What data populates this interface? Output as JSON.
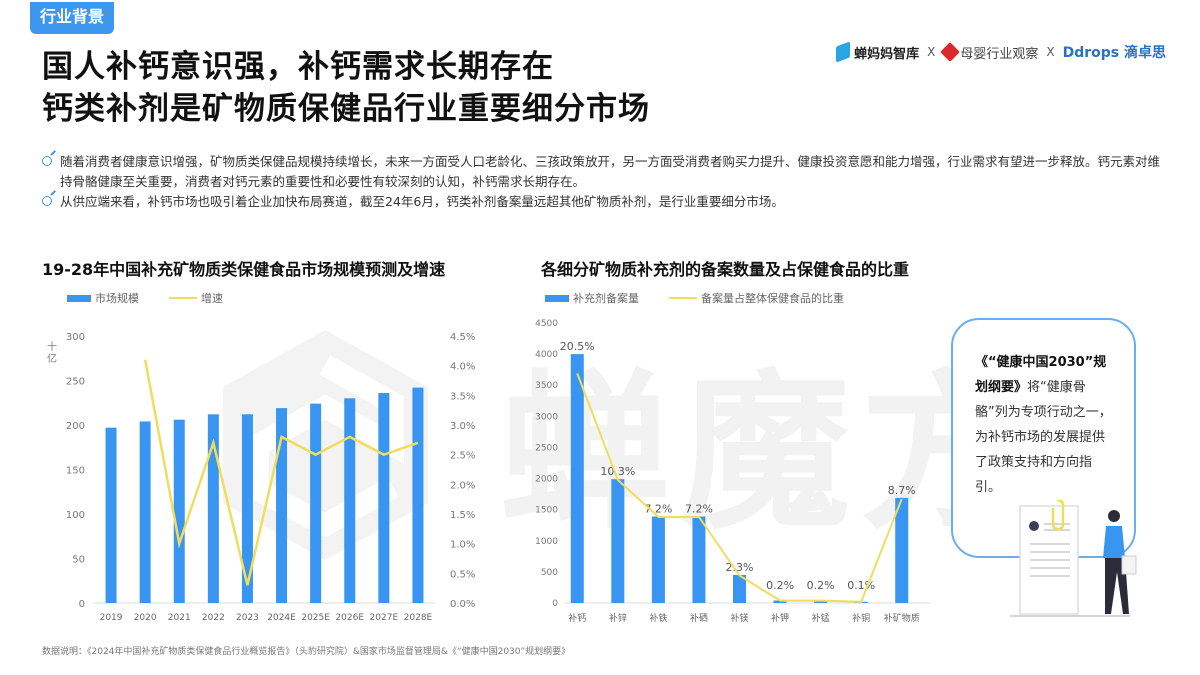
{
  "header": {
    "section_tag": "行业背景",
    "title_line1": "国人补钙意识强，补钙需求长期存在",
    "title_line2": "钙类补剂是矿物质保健品行业重要细分市场",
    "logos": [
      {
        "name": "蝉妈妈智库"
      },
      {
        "separator": "X"
      },
      {
        "name": "母婴行业观察"
      },
      {
        "separator": "X"
      },
      {
        "name": "Ddrops 滴卓思"
      }
    ]
  },
  "bullets": [
    "随着消费者健康意识增强，矿物质类保健品规模持续增长，未来一方面受人口老龄化、三孩政策放开，另一方面受消费者购买力提升、健康投资意愿和能力增强，行业需求有望进一步释放。钙元素对维持骨骼健康至关重要，消费者对钙元素的重要性和必要性有较深刻的认知，补钙需求长期存在。",
    "从供应端来看，补钙市场也吸引着企业加快布局赛道，截至24年6月，钙类补剂备案量远超其他矿物质补剂，是行业重要细分市场。"
  ],
  "callout": {
    "bold_text": "《“健康中国2030”规划纲要》",
    "text": "将“健康骨骼”列为专项行动之一，为补钙市场的发展提供了政策支持和方向指引。"
  },
  "watermark": "蝉魔方",
  "footer": "数据说明：《2024年中国补充矿物质类保健食品行业概览报告》（头豹研究院）&国家市场监督管理局&《“健康中国2030”规划纲要》",
  "colors": {
    "accent_blue": "#3d97ee",
    "bar_blue": "#3895f1",
    "line_yellow": "#f1dd5d",
    "callout_border": "#6aaef0"
  },
  "chart_data": [
    {
      "type": "bar",
      "title": "19-28年中国补充矿物质类保健食品市场规模预测及增速",
      "xlabel": "",
      "ylabel": "十亿",
      "categories": [
        "2019",
        "2020",
        "2021",
        "2022",
        "2023",
        "2024E",
        "2025E",
        "2026E",
        "2027E",
        "2028E"
      ],
      "series": [
        {
          "name": "市场规模",
          "type": "bar",
          "axis": "left",
          "values": [
            197,
            204,
            206,
            212,
            212,
            219,
            224,
            230,
            236,
            242
          ]
        },
        {
          "name": "增速",
          "type": "line",
          "axis": "right",
          "values": [
            null,
            4.1,
            1.0,
            2.7,
            0.3,
            2.8,
            2.5,
            2.8,
            2.5,
            2.7
          ]
        }
      ],
      "ylim": [
        0,
        300
      ],
      "yticks": [
        "0",
        "50",
        "100",
        "150",
        "200",
        "250",
        "300"
      ],
      "y2lim": [
        0,
        4.5
      ],
      "y2ticks": [
        "0.0%",
        "0.5%",
        "1.0%",
        "1.5%",
        "2.0%",
        "2.5%",
        "3.0%",
        "3.5%",
        "4.0%",
        "4.5%"
      ],
      "legend": [
        "市场规模",
        "增速"
      ],
      "legend_position": "top-left",
      "grid": false
    },
    {
      "type": "bar",
      "title": "各细分矿物质补充剂的备案数量及占保健食品的比重",
      "xlabel": "",
      "ylabel": "",
      "categories": [
        "补钙",
        "补锌",
        "补铁",
        "补硒",
        "补镁",
        "补钾",
        "补锰",
        "补铜",
        "补矿物质"
      ],
      "series": [
        {
          "name": "补充剂备案量",
          "type": "bar",
          "values": [
            4000,
            1990,
            1390,
            1390,
            450,
            40,
            40,
            20,
            1690
          ]
        },
        {
          "name": "备案量占整体保健食品的比重",
          "type": "line",
          "values": [
            20.5,
            10.3,
            7.2,
            7.2,
            2.3,
            0.2,
            0.2,
            0.1,
            8.7
          ]
        }
      ],
      "data_labels": [
        "20.5%",
        "10.3%",
        "7.2%",
        "7.2%",
        "2.3%",
        "0.2%",
        "0.2%",
        "0.1%",
        "8.7%"
      ],
      "ylim": [
        0,
        4500
      ],
      "yticks": [
        "0",
        "500",
        "1000",
        "1500",
        "2000",
        "2500",
        "3000",
        "3500",
        "4000",
        "4500"
      ],
      "legend": [
        "补充剂备案量",
        "备案量占整体保健食品的比重"
      ],
      "legend_position": "top-left",
      "grid": false
    }
  ]
}
